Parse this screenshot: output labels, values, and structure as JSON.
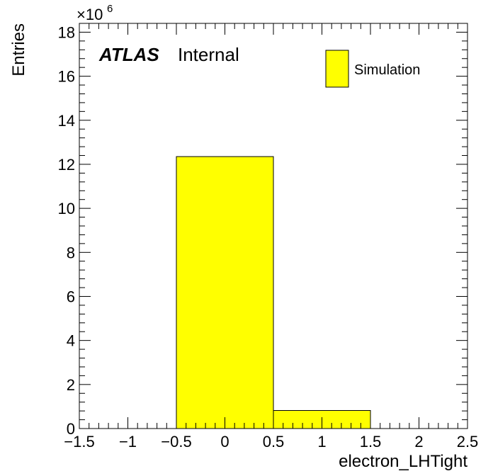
{
  "chart_data": {
    "type": "bar",
    "title": "",
    "xlabel": "electron_LHTight",
    "ylabel": "Entries",
    "y_multiplier": "×10",
    "y_multiplier_exponent": "6",
    "xlim": [
      -1.5,
      2.5
    ],
    "ylim": [
      0,
      18.4
    ],
    "x_tick_labels": [
      "−1.5",
      "−1",
      "−0.5",
      "0",
      "0.5",
      "1",
      "1.5",
      "2",
      "2.5"
    ],
    "x_ticks": [
      -1.5,
      -1,
      -0.5,
      0,
      0.5,
      1,
      1.5,
      2,
      2.5
    ],
    "y_tick_labels": [
      "0",
      "2",
      "4",
      "6",
      "8",
      "10",
      "12",
      "14",
      "16",
      "18"
    ],
    "y_ticks": [
      0,
      2,
      4,
      6,
      8,
      10,
      12,
      14,
      16,
      18
    ],
    "bins": [
      {
        "low": -0.5,
        "high": 0.5,
        "value": 12.35
      },
      {
        "low": 0.5,
        "high": 1.5,
        "value": 0.82
      }
    ],
    "bar_color": "#ffff00",
    "legend": {
      "placement": "top-right",
      "entries": [
        "Simulation"
      ]
    },
    "annotation": {
      "experiment": "ATLAS",
      "status": "Internal"
    },
    "grid": false
  }
}
